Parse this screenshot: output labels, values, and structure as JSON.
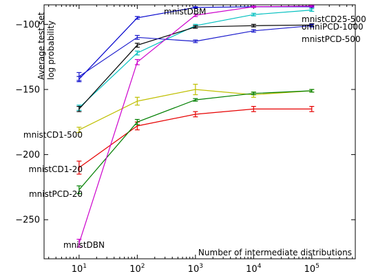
{
  "chart_data": {
    "type": "line",
    "title": "",
    "xlabel": "Number of intermediate distributions",
    "ylabel_lines": [
      "Average test set",
      "log probability"
    ],
    "xscale": "log",
    "xlim": [
      2.5,
      560000
    ],
    "ylim": [
      -280,
      -85
    ],
    "grid": false,
    "legend": "labels placed next to lines",
    "x": [
      10,
      100,
      1000,
      10000,
      100000
    ],
    "xtick_labels": [
      {
        "base": "10",
        "exp": "1"
      },
      {
        "base": "10",
        "exp": "2"
      },
      {
        "base": "10",
        "exp": "3"
      },
      {
        "base": "10",
        "exp": "4"
      },
      {
        "base": "10",
        "exp": "5"
      }
    ],
    "yticks": [
      -100,
      -150,
      -200,
      -250
    ],
    "ytick_labels": [
      "−100",
      "−150",
      "−200",
      "−250"
    ],
    "series": [
      {
        "name": "mnistDBM",
        "color": "#0000cc",
        "values": [
          -142,
          -95,
          -87,
          -86.5,
          -86.5
        ],
        "err": [
          2,
          1,
          0.5,
          0.5,
          0.5
        ]
      },
      {
        "name": "mnistCD25-500",
        "color": "#00bfbf",
        "values": [
          -164,
          -122,
          -101,
          -92.5,
          -89
        ],
        "err": [
          2,
          1.5,
          1,
          1,
          1
        ]
      },
      {
        "name": "omniPCD-1000",
        "color": "#000000",
        "values": [
          -165,
          -116,
          -102,
          -101,
          -100.5
        ],
        "err": [
          2,
          1.5,
          1,
          1,
          1
        ]
      },
      {
        "name": "mnistPCD-500",
        "color": "#1a1acc",
        "values": [
          -140,
          -110,
          -113,
          -105,
          -101
        ],
        "err": [
          3,
          1.5,
          1,
          1,
          1
        ]
      },
      {
        "name": "mnistCD1-500",
        "color": "#bfbf00",
        "values": [
          -181,
          -159,
          -150,
          -154,
          -151
        ],
        "err": [
          2,
          3,
          4,
          2,
          1
        ]
      },
      {
        "name": "mnistCD1-20",
        "color": "#e60000",
        "values": [
          -210,
          -178,
          -169,
          -165,
          -165
        ],
        "err": [
          5,
          3,
          2,
          2,
          2
        ]
      },
      {
        "name": "mnistPCD-20",
        "color": "#007f00",
        "values": [
          -227,
          -175,
          -158,
          -153,
          -151
        ],
        "err": [
          3,
          2,
          1,
          1,
          1
        ]
      },
      {
        "name": "mnistDBN",
        "color": "#cc00cc",
        "values": [
          -268,
          -129,
          -93,
          -86.5,
          -86
        ],
        "err": [
          3,
          2,
          1,
          0.5,
          0.5
        ]
      }
    ],
    "labels": [
      {
        "text": "mnistDBM"
      },
      {
        "text": "mnistCD25-500"
      },
      {
        "text": "omniPCD-1000"
      },
      {
        "text": "mnistPCD-500"
      },
      {
        "text": "mnistCD1-500"
      },
      {
        "text": "mnistCD1-20"
      },
      {
        "text": "mnistPCD-20"
      },
      {
        "text": "mnistDBN"
      }
    ]
  }
}
